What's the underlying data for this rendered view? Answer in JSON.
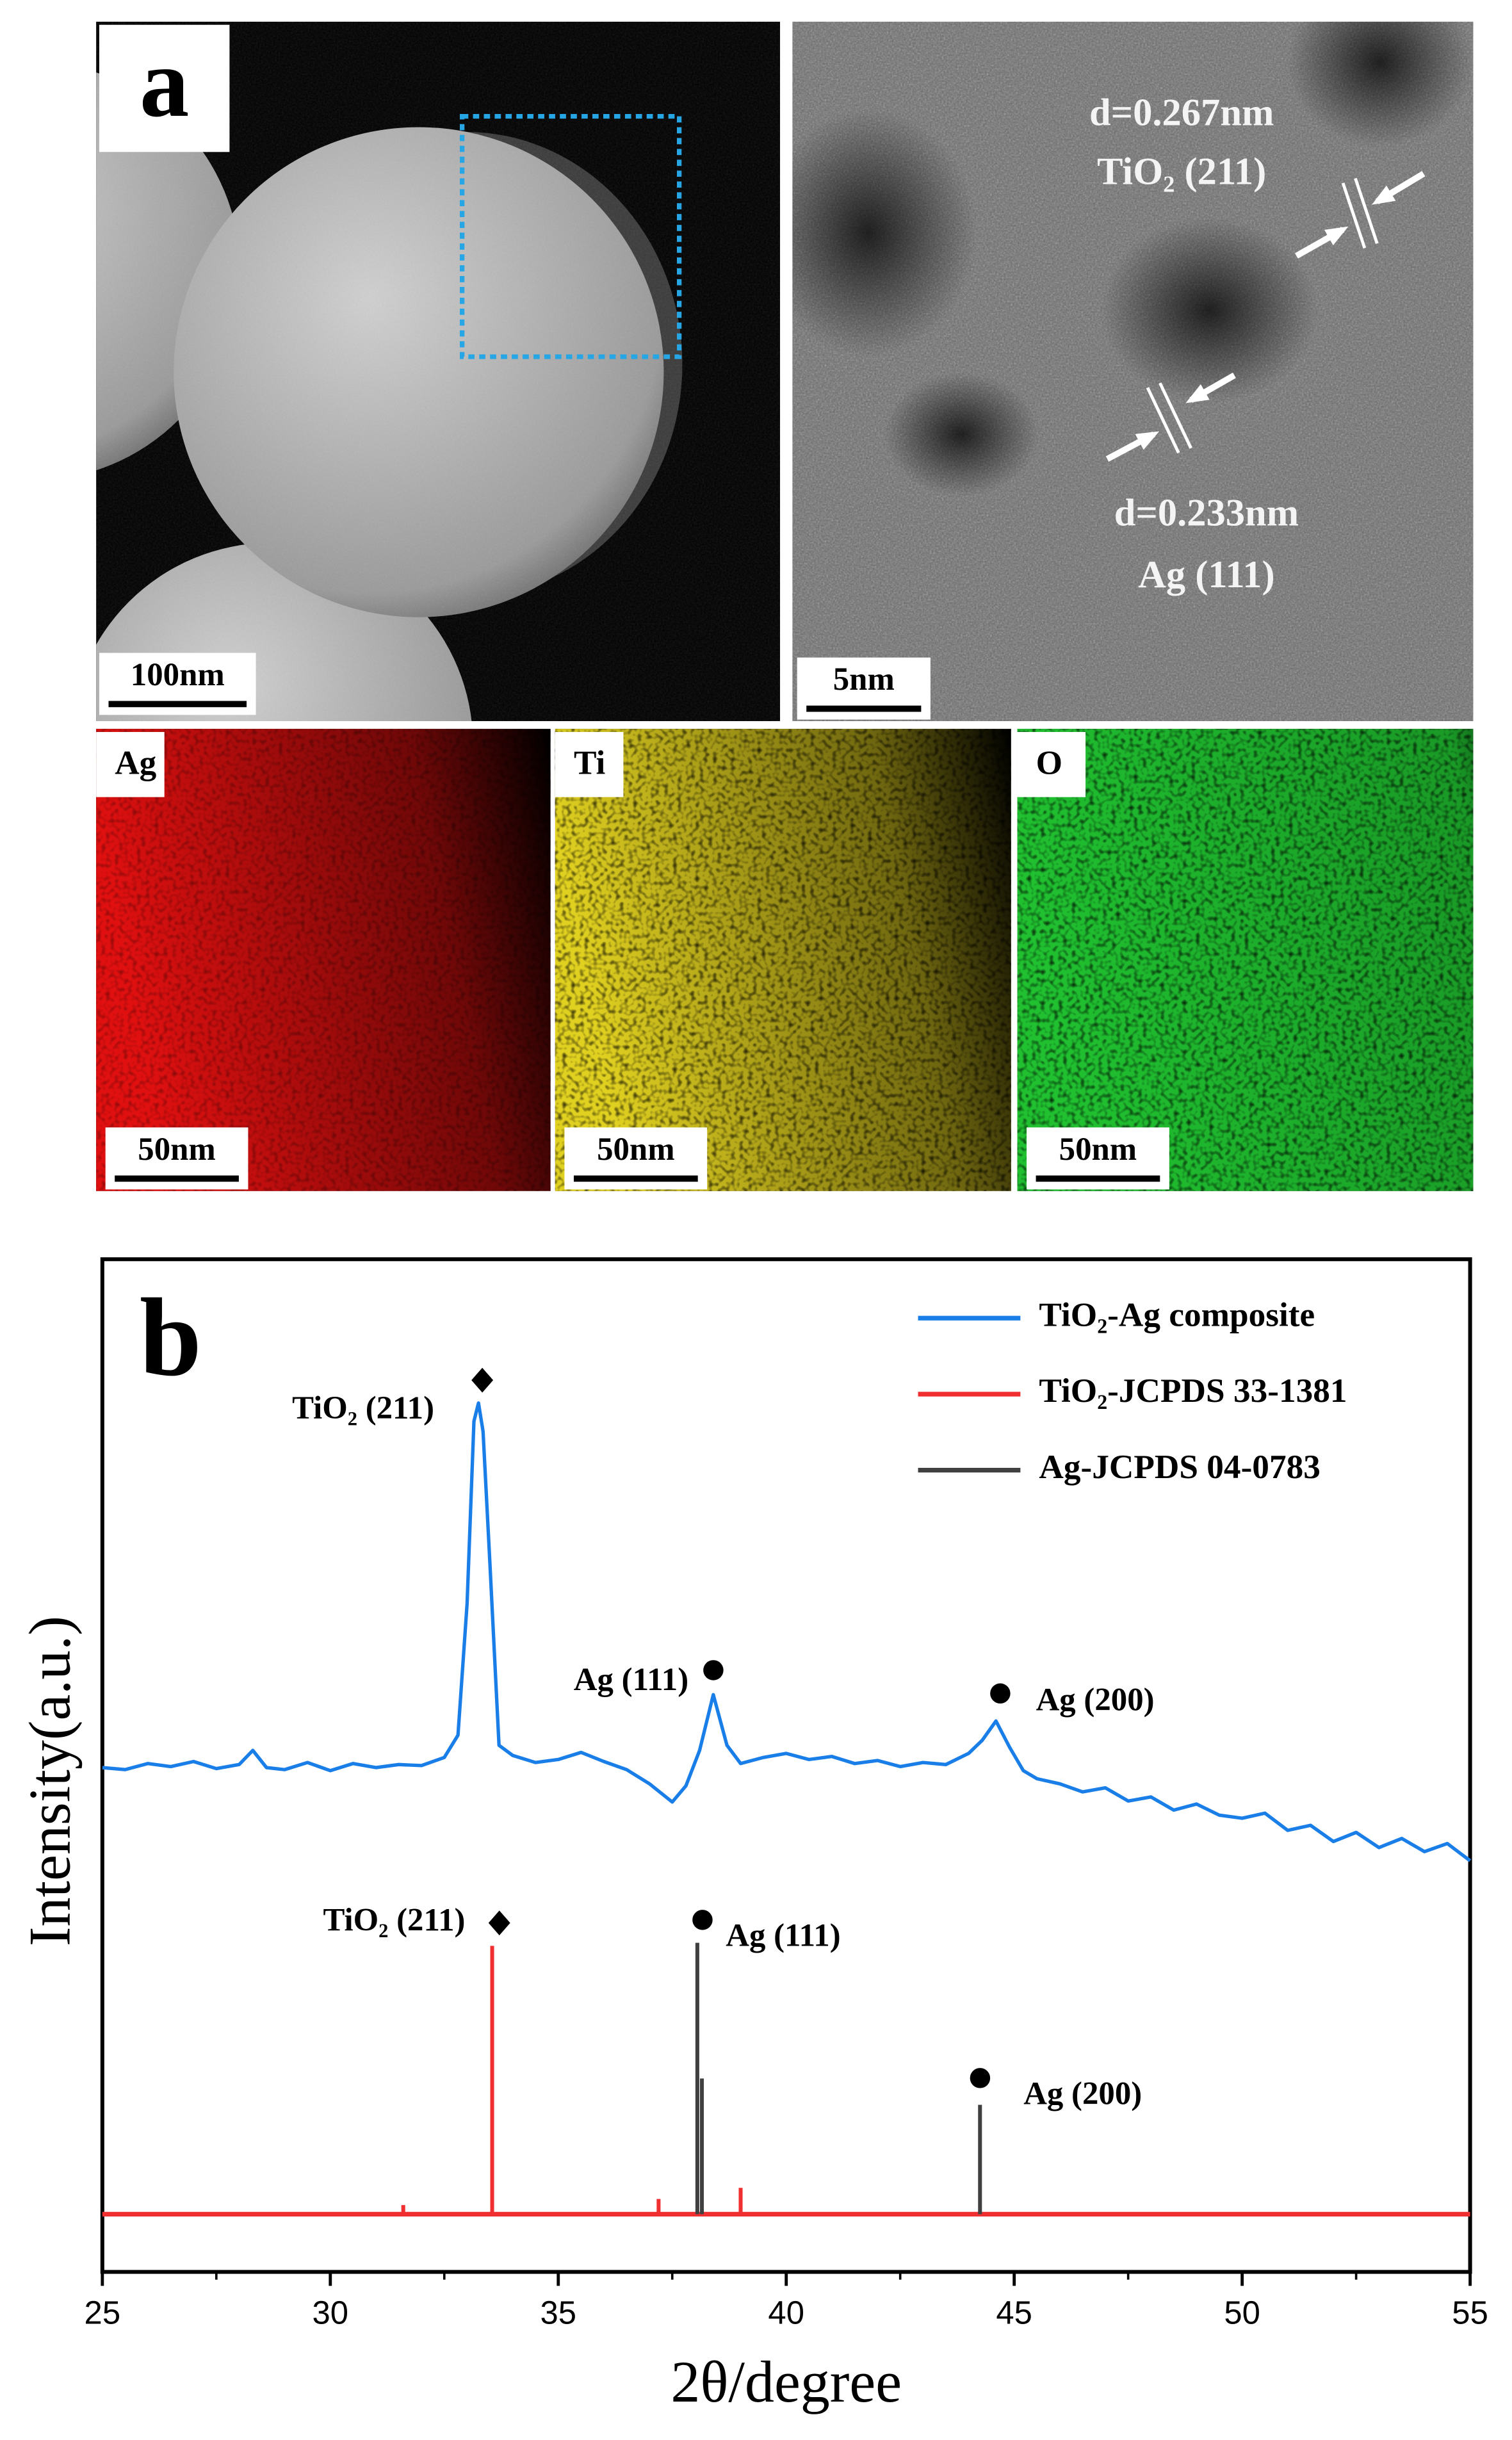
{
  "figure_a": {
    "label": "a",
    "sem": {
      "scale_bar": "100nm"
    },
    "hrtem": {
      "scale_bar": "5nm",
      "spacing_1": "d=0.267nm",
      "plane_1": "TiO₂ (211)",
      "spacing_2": "d=0.233nm",
      "plane_2": "Ag (111)"
    },
    "maps": [
      {
        "element": "Ag",
        "scale_bar": "50nm",
        "color": "#e01010"
      },
      {
        "element": "Ti",
        "scale_bar": "50nm",
        "color": "#e0d020"
      },
      {
        "element": "O",
        "scale_bar": "50nm",
        "color": "#20c030"
      }
    ]
  },
  "chart_data": {
    "type": "line",
    "panel_label": "b",
    "x_label": "2θ/degree",
    "y_label": "Intensity(a.u.)",
    "xlim": [
      25,
      55
    ],
    "xticks": [
      25,
      30,
      35,
      40,
      45,
      50,
      55
    ],
    "ylim": [
      0,
      100
    ],
    "legend": "top-right",
    "annotations": [
      "TiO₂ (211)",
      "Ag (111)",
      "Ag (200)",
      "TiO₂ (211)",
      "Ag (111)",
      "Ag (200)"
    ],
    "series": [
      {
        "name": "TiO₂-Ag composite",
        "color": "#1a7ee8",
        "style": "line",
        "x": [
          25,
          25.5,
          26,
          26.5,
          27,
          27.5,
          28,
          28.3,
          28.6,
          29,
          29.5,
          30,
          30.5,
          31,
          31.5,
          32,
          32.5,
          32.8,
          33.0,
          33.15,
          33.25,
          33.35,
          33.5,
          33.7,
          34,
          34.5,
          35,
          35.5,
          36,
          36.5,
          37,
          37.5,
          37.8,
          38.1,
          38.4,
          38.7,
          39,
          39.5,
          40,
          40.5,
          41,
          41.5,
          42,
          42.5,
          43,
          43.5,
          44,
          44.3,
          44.6,
          44.9,
          45.2,
          45.5,
          46,
          46.5,
          47,
          47.5,
          48,
          48.5,
          49,
          49.5,
          50,
          50.5,
          51,
          51.5,
          52,
          52.5,
          53,
          53.5,
          54,
          54.5,
          55
        ],
        "values": [
          49.8,
          49.6,
          50.2,
          49.9,
          50.4,
          49.7,
          50.1,
          51.5,
          49.8,
          49.6,
          50.3,
          49.5,
          50.2,
          49.8,
          50.1,
          50.0,
          50.8,
          53,
          66,
          84,
          85.8,
          83,
          70,
          52,
          51,
          50.3,
          50.6,
          51.3,
          50.4,
          49.6,
          48.2,
          46.4,
          48,
          51.5,
          57,
          52,
          50.2,
          50.8,
          51.2,
          50.6,
          50.9,
          50.2,
          50.5,
          49.9,
          50.3,
          50.1,
          51.2,
          52.5,
          54.4,
          51.8,
          49.5,
          48.7,
          48.2,
          47.4,
          47.8,
          46.5,
          46.9,
          45.6,
          46.2,
          45.1,
          44.8,
          45.3,
          43.6,
          44.1,
          42.5,
          43.4,
          41.9,
          42.8,
          41.5,
          42.3,
          40.6
        ]
      },
      {
        "name": "TiO₂-JCPDS 33-1381",
        "color": "#f03030",
        "style": "stick",
        "baseline": 5.7,
        "x": [
          31.6,
          33.55,
          37.2,
          39.0
        ],
        "values": [
          6.6,
          32.2,
          7.2,
          8.3
        ]
      },
      {
        "name": "Ag-JCPDS 04-0783",
        "color": "#404040",
        "style": "stick",
        "baseline": 5.7,
        "x": [
          38.05,
          38.15,
          44.25
        ],
        "values": [
          32.5,
          19.1,
          16.5
        ]
      }
    ]
  }
}
